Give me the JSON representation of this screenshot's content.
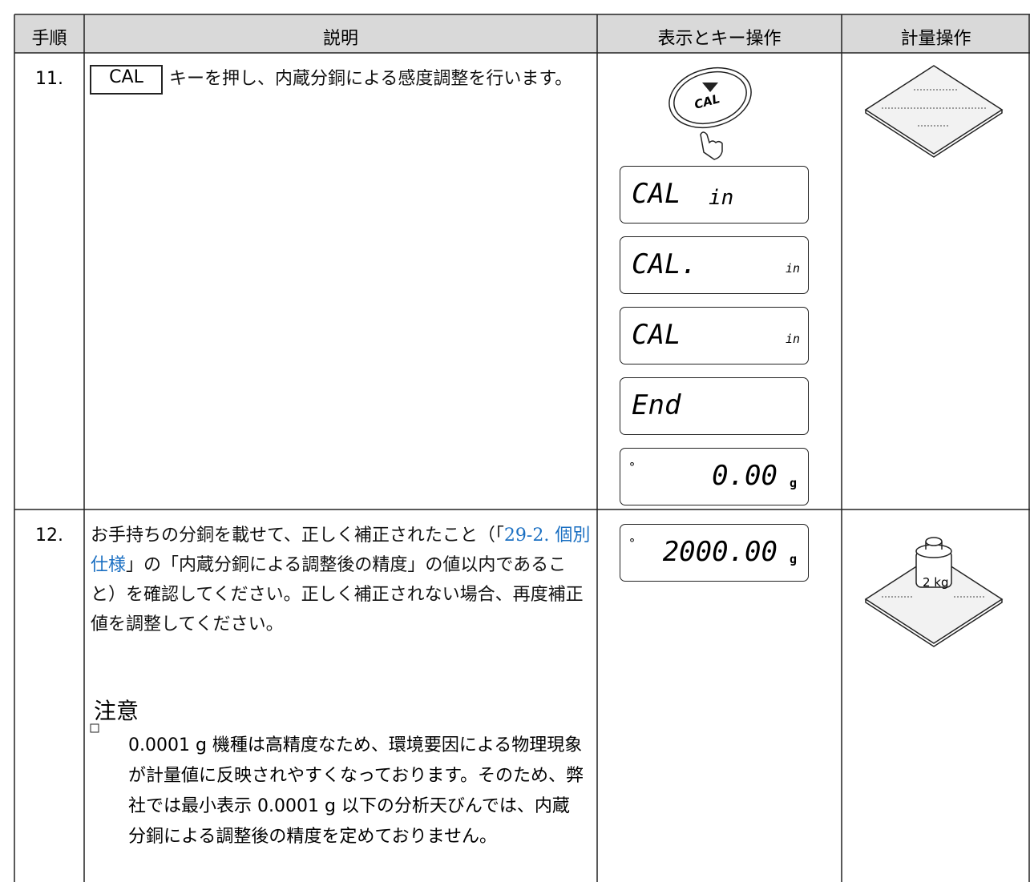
{
  "header": {
    "step": "手順",
    "description": "説明",
    "display": "表示とキー操作",
    "operation": "計量操作"
  },
  "rows": [
    {
      "step": "11.",
      "key": "CAL",
      "text": "キーを押し、内蔵分銅による感度調整を行います。",
      "button": "CAL",
      "displays": [
        {
          "main": "CAL",
          "sub": "in"
        },
        {
          "main": "CAL.",
          "sub": "in"
        },
        {
          "main": "CAL",
          "sub": "in"
        },
        {
          "main": "End"
        },
        {
          "main": "0.00",
          "unit": "g"
        }
      ]
    },
    {
      "step": "12.",
      "text_before": "お手持ちの分銅を載せて、正しく補正されたこと（「",
      "link": "29-2. 個別仕様",
      "text_after": "」の「内蔵分銅による調整後の精度」の値以内であること）を確認してください。正しく補正されない場合、再度補正値を調整してください。",
      "note_title": "注意",
      "note": "0.0001 g 機種は高精度なため、環境要因による物理現象が計量値に反映されやすくなっております。そのため、弊社では最小表示 0.0001 g 以下の分析天びんでは、内蔵分銅による調整後の精度を定めておりません。",
      "displays": [
        {
          "main": "2000.00",
          "unit": "g"
        }
      ],
      "weight": "2 kg"
    }
  ]
}
